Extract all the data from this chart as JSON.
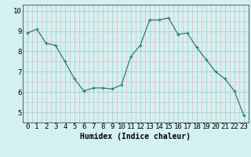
{
  "x": [
    0,
    1,
    2,
    3,
    4,
    5,
    6,
    7,
    8,
    9,
    10,
    11,
    12,
    13,
    14,
    15,
    16,
    17,
    18,
    19,
    20,
    21,
    22,
    23
  ],
  "y": [
    8.9,
    9.1,
    8.4,
    8.3,
    7.5,
    6.65,
    6.05,
    6.2,
    6.2,
    6.15,
    6.35,
    7.75,
    8.3,
    9.55,
    9.55,
    9.65,
    8.85,
    8.9,
    8.2,
    7.6,
    7.0,
    6.65,
    6.05,
    4.85
  ],
  "xlabel": "Humidex (Indice chaleur)",
  "xlim": [
    -0.5,
    23.5
  ],
  "ylim": [
    4.5,
    10.3
  ],
  "yticks": [
    5,
    6,
    7,
    8,
    9,
    10
  ],
  "xticks": [
    0,
    1,
    2,
    3,
    4,
    5,
    6,
    7,
    8,
    9,
    10,
    11,
    12,
    13,
    14,
    15,
    16,
    17,
    18,
    19,
    20,
    21,
    22,
    23
  ],
  "line_color": "#2e7d6e",
  "marker": "+",
  "bg_color": "#d4f0f0",
  "grid_color_major": "#aacfcf",
  "grid_color_minor": "#e8b8b8",
  "spine_color": "#607070",
  "xlabel_fontsize": 7,
  "tick_fontsize": 6.5,
  "marker_size": 3.5,
  "line_width": 0.9
}
